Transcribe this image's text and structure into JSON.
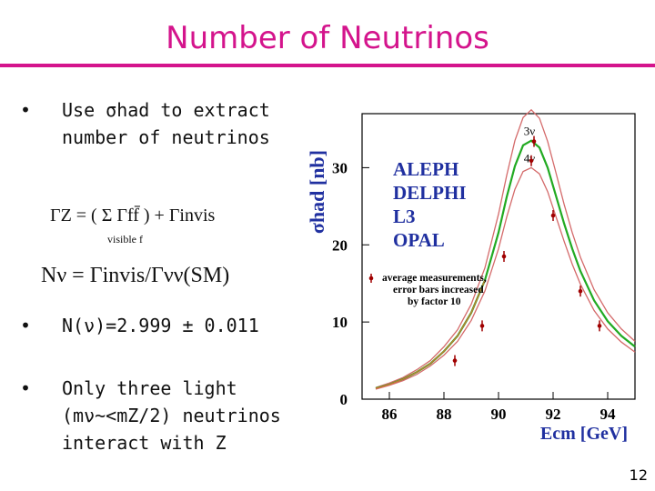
{
  "slide": {
    "title": "Number of Neutrinos",
    "page_number": "12",
    "accent_color": "#d4148c"
  },
  "bullets": [
    {
      "line1": "Use σhad to extract",
      "line2": "number of neutrinos"
    },
    {
      "line1": "N(ν)=2.999 ± 0.011"
    },
    {
      "line1": "Only three light",
      "line2": "(mν~<mZ/2) neutrinos",
      "line3": "interact with Z"
    }
  ],
  "equations": {
    "gamma_z": "ΓZ = ( Σ Γff̄ ) + Γinvis",
    "sum_subscript": "visible  f",
    "n_nu": "Nν = Γinvis/Γνν(SM)"
  },
  "chart_data": {
    "type": "line",
    "xlabel": "Ecm [GeV]",
    "ylabel": "σhad [nb]",
    "xlim": [
      85,
      95
    ],
    "ylim": [
      0,
      37
    ],
    "x_ticks": [
      86,
      88,
      90,
      92,
      94
    ],
    "y_ticks": [
      0,
      10,
      20,
      30
    ],
    "legend_experiments": [
      "ALEPH",
      "DELPHI",
      "L3",
      "OPAL"
    ],
    "annotation": [
      "average measurements,",
      "error bars increased",
      "by factor 10"
    ],
    "series": [
      {
        "name": "2ν",
        "color": "#d46a6a",
        "x": [
          85.5,
          86,
          86.5,
          87,
          87.5,
          88,
          88.5,
          89,
          89.5,
          90,
          90.3,
          90.6,
          90.9,
          91.2,
          91.5,
          91.8,
          92.1,
          92.4,
          92.7,
          93,
          93.5,
          94,
          94.5,
          95
        ],
        "y": [
          1.5,
          2.1,
          2.8,
          3.8,
          5.0,
          6.8,
          9.0,
          12.3,
          17.0,
          24.0,
          29.0,
          33.5,
          36.5,
          37.5,
          36.4,
          33.4,
          29.4,
          25.3,
          21.6,
          18.4,
          14.2,
          11.2,
          9.1,
          7.5
        ]
      },
      {
        "name": "3ν",
        "color": "#22aa22",
        "x": [
          85.5,
          86,
          86.5,
          87,
          87.5,
          88,
          88.5,
          89,
          89.5,
          90,
          90.3,
          90.6,
          90.9,
          91.2,
          91.5,
          91.8,
          92.1,
          92.4,
          92.7,
          93,
          93.5,
          94,
          94.5,
          95
        ],
        "y": [
          1.4,
          1.9,
          2.6,
          3.5,
          4.6,
          6.2,
          8.2,
          11.2,
          15.4,
          21.6,
          26.2,
          30.2,
          32.9,
          33.5,
          32.6,
          30.0,
          26.4,
          22.8,
          19.5,
          16.6,
          12.8,
          10.1,
          8.2,
          6.8
        ]
      },
      {
        "name": "4ν",
        "color": "#d46a6a",
        "x": [
          85.5,
          86,
          86.5,
          87,
          87.5,
          88,
          88.5,
          89,
          89.5,
          90,
          90.3,
          90.6,
          90.9,
          91.2,
          91.5,
          91.8,
          92.1,
          92.4,
          92.7,
          93,
          93.5,
          94,
          94.5,
          95
        ],
        "y": [
          1.3,
          1.8,
          2.4,
          3.2,
          4.3,
          5.7,
          7.5,
          10.2,
          14.0,
          19.5,
          23.6,
          27.2,
          29.5,
          30.0,
          29.2,
          26.9,
          23.7,
          20.5,
          17.5,
          14.9,
          11.5,
          9.1,
          7.4,
          6.1
        ]
      },
      {
        "name": "",
        "color": "#c87830",
        "x": [
          85.5,
          86,
          86.5,
          87,
          87.5,
          88,
          88.5,
          89,
          89.5
        ],
        "y": [
          1.4,
          1.9,
          2.6,
          3.5,
          4.6,
          6.2,
          8.2,
          11.2,
          15.4
        ]
      }
    ],
    "measurements": {
      "x": [
        88.4,
        89.4,
        90.2,
        91.3,
        91.2,
        92.0,
        93.0,
        93.7
      ],
      "y": [
        5.0,
        9.5,
        18.5,
        33.4,
        30.9,
        23.8,
        14.0,
        9.5
      ]
    }
  }
}
